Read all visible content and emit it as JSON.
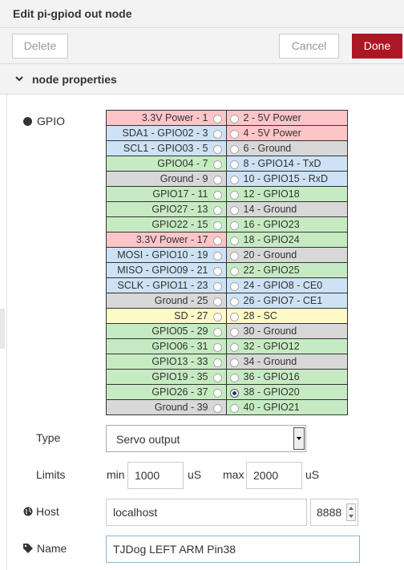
{
  "dialog": {
    "title": "Edit pi-gpiod out node"
  },
  "toolbar": {
    "delete_label": "Delete",
    "cancel_label": "Cancel",
    "done_label": "Done"
  },
  "section": {
    "title": "node properties"
  },
  "gpio": {
    "label": "GPIO",
    "selected_pin": "38",
    "rows": [
      {
        "left": "3.3V Power - 1",
        "right": "2 - 5V Power",
        "left_color": "power",
        "right_color": "power"
      },
      {
        "left": "SDA1 - GPIO02 - 3",
        "right": "4 - 5V Power",
        "left_color": "spec",
        "right_color": "power"
      },
      {
        "left": "SCL1 - GPIO03 - 5",
        "right": "6 - Ground",
        "left_color": "spec",
        "right_color": "gnd"
      },
      {
        "left": "GPIO04 - 7",
        "right": "8 - GPIO14 - TxD",
        "left_color": "gpio",
        "right_color": "spec"
      },
      {
        "left": "Ground - 9",
        "right": "10 - GPIO15 - RxD",
        "left_color": "gnd",
        "right_color": "spec"
      },
      {
        "left": "GPIO17 - 11",
        "right": "12 - GPIO18",
        "left_color": "gpio",
        "right_color": "gpio"
      },
      {
        "left": "GPIO27 - 13",
        "right": "14 - Ground",
        "left_color": "gpio",
        "right_color": "gnd"
      },
      {
        "left": "GPIO22 - 15",
        "right": "16 - GPIO23",
        "left_color": "gpio",
        "right_color": "gpio"
      },
      {
        "left": "3.3V Power - 17",
        "right": "18 - GPIO24",
        "left_color": "power",
        "right_color": "gpio"
      },
      {
        "left": "MOSI - GPIO10 - 19",
        "right": "20 - Ground",
        "left_color": "spec",
        "right_color": "gnd"
      },
      {
        "left": "MISO - GPIO09 - 21",
        "right": "22 - GPIO25",
        "left_color": "spec",
        "right_color": "gpio"
      },
      {
        "left": "SCLK - GPIO11 - 23",
        "right": "24 - GPIO8 - CE0",
        "left_color": "spec",
        "right_color": "spec"
      },
      {
        "left": "Ground - 25",
        "right": "26 - GPIO7 - CE1",
        "left_color": "gnd",
        "right_color": "spec"
      },
      {
        "left": "SD - 27",
        "right": "28 - SC",
        "left_color": "sd",
        "right_color": "sd"
      },
      {
        "left": "GPIO05 - 29",
        "right": "30 - Ground",
        "left_color": "gpio",
        "right_color": "gnd"
      },
      {
        "left": "GPIO06 - 31",
        "right": "32 - GPIO12",
        "left_color": "gpio",
        "right_color": "gpio"
      },
      {
        "left": "GPIO13 - 33",
        "right": "34 - Ground",
        "left_color": "gpio",
        "right_color": "gnd"
      },
      {
        "left": "GPIO19 - 35",
        "right": "36 - GPIO16",
        "left_color": "gpio",
        "right_color": "gpio"
      },
      {
        "left": "GPIO26 - 37",
        "right": "38 - GPIO20",
        "left_color": "gpio",
        "right_color": "gpio"
      },
      {
        "left": "Ground - 39",
        "right": "40 - GPIO21",
        "left_color": "gnd",
        "right_color": "gpio"
      }
    ]
  },
  "type": {
    "label": "Type",
    "value": "Servo output"
  },
  "limits": {
    "label": "Limits",
    "min_label": "min",
    "min_value": "1000",
    "min_unit": "uS",
    "max_label": "max",
    "max_value": "2000",
    "max_unit": "uS"
  },
  "host": {
    "label": "Host",
    "value": "localhost",
    "port": "8888"
  },
  "name": {
    "label": "Name",
    "value": "TJDog LEFT ARM Pin38"
  },
  "colors": {
    "accent": "#ad1625",
    "power": "#fec5c9",
    "ground": "#d8d8d8",
    "gpio": "#c6ebc2",
    "special": "#cde2f4",
    "sd": "#fdfac7"
  }
}
